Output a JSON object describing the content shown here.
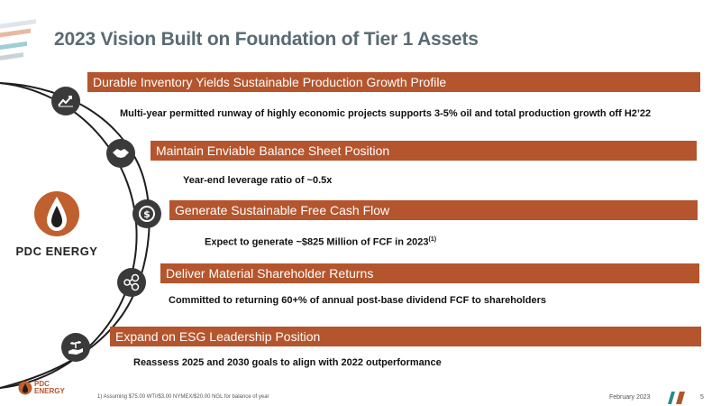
{
  "title": "2023 Vision Built on Foundation of Tier 1 Assets",
  "colors": {
    "accent": "#b4552d",
    "title": "#5a6a72",
    "icon_bg": "#3a3a3a",
    "teal": "#2a8a8a"
  },
  "logo": {
    "name": "PDC ENERGY"
  },
  "items": [
    {
      "heading": "Durable Inventory Yields Sustainable Production Growth Profile",
      "detail": "Multi-year permitted runway of highly economic projects supports 3-5% oil and total production growth off H2’22",
      "icon": "chart-trend-icon"
    },
    {
      "heading": "Maintain Enviable Balance Sheet Position",
      "detail": "Year-end leverage ratio of ~0.5x",
      "icon": "handshake-icon"
    },
    {
      "heading": "Generate Sustainable Free Cash Flow",
      "detail": "Expect to generate ~$825 Million of FCF in 2023",
      "detail_sup": "(1)",
      "icon": "dollar-cycle-icon"
    },
    {
      "heading": "Deliver Material Shareholder Returns",
      "detail": "Committed to returning 60+% of annual post-base dividend FCF to shareholders",
      "icon": "dollar-network-icon"
    },
    {
      "heading": "Expand on ESG Leadership Position",
      "detail": "Reassess 2025 and 2030 goals to align with 2022 outperformance",
      "icon": "plant-hand-icon"
    }
  ],
  "footer": {
    "logo_line1": "PDC",
    "logo_line2": "ENERGY",
    "footnote": "1) Assuming $75.00 WTI/$3.00 NYMEX/$20.00 NGL for balance of year",
    "date": "February 2023",
    "page": "5"
  }
}
